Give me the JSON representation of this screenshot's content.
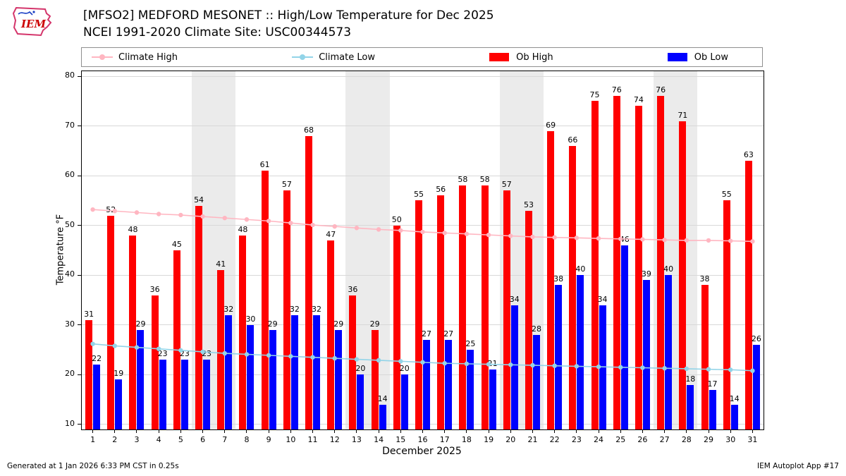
{
  "header": {
    "title_line1": "[MFSO2] MEDFORD MESONET :: High/Low Temperature for Dec 2025",
    "title_line2": "NCEI 1991-2020 Climate Site: USC00344573",
    "logo_text": "IEM"
  },
  "legend": {
    "items": [
      {
        "label": "Climate High",
        "type": "line",
        "color": "#ffb6c1"
      },
      {
        "label": "Climate Low",
        "type": "line",
        "color": "#92d4e8"
      },
      {
        "label": "Ob High",
        "type": "bar",
        "color": "#ff0000"
      },
      {
        "label": "Ob Low",
        "type": "bar",
        "color": "#0000ff"
      }
    ]
  },
  "chart_data": {
    "type": "bar",
    "title": "[MFSO2] MEDFORD MESONET :: High/Low Temperature for Dec 2025",
    "subtitle": "NCEI 1991-2020 Climate Site: USC00344573",
    "xlabel": "December 2025",
    "ylabel": "Temperature °F",
    "ylim": [
      9,
      81
    ],
    "yticks": [
      10,
      20,
      30,
      40,
      50,
      60,
      70,
      80
    ],
    "grid": true,
    "categories": [
      1,
      2,
      3,
      4,
      5,
      6,
      7,
      8,
      9,
      10,
      11,
      12,
      13,
      14,
      15,
      16,
      17,
      18,
      19,
      20,
      21,
      22,
      23,
      24,
      25,
      26,
      27,
      28,
      29,
      30,
      31
    ],
    "weekend_day_bands": [
      [
        6,
        7
      ],
      [
        13,
        14
      ],
      [
        20,
        21
      ],
      [
        27,
        28
      ]
    ],
    "series": [
      {
        "name": "Ob High",
        "type": "bar",
        "color": "#ff0000",
        "labeled": true,
        "values": [
          31,
          52,
          48,
          36,
          45,
          54,
          41,
          48,
          61,
          57,
          68,
          47,
          36,
          29,
          50,
          55,
          56,
          58,
          58,
          57,
          53,
          69,
          66,
          75,
          76,
          74,
          76,
          71,
          38,
          55,
          63
        ]
      },
      {
        "name": "Ob Low",
        "type": "bar",
        "color": "#0000ff",
        "labeled": true,
        "values": [
          22,
          19,
          29,
          23,
          23,
          23,
          32,
          30,
          29,
          32,
          32,
          29,
          20,
          14,
          20,
          27,
          27,
          25,
          21,
          34,
          28,
          38,
          40,
          34,
          46,
          39,
          40,
          18,
          17,
          14,
          26
        ]
      },
      {
        "name": "Climate High",
        "type": "line",
        "color": "#ffb6c1",
        "labeled": false,
        "values": [
          53.2,
          52.9,
          52.6,
          52.3,
          52.1,
          51.8,
          51.5,
          51.2,
          50.9,
          50.5,
          50.1,
          49.8,
          49.5,
          49.2,
          49.0,
          48.7,
          48.5,
          48.3,
          48.1,
          47.9,
          47.7,
          47.6,
          47.5,
          47.4,
          47.3,
          47.2,
          47.1,
          47.0,
          47.0,
          46.9,
          46.8
        ]
      },
      {
        "name": "Climate Low",
        "type": "line",
        "color": "#92d4e8",
        "labeled": false,
        "values": [
          26.2,
          25.8,
          25.5,
          25.2,
          24.9,
          24.6,
          24.3,
          24.1,
          23.9,
          23.7,
          23.5,
          23.3,
          23.1,
          22.9,
          22.7,
          22.5,
          22.3,
          22.2,
          22.1,
          22.0,
          21.9,
          21.8,
          21.7,
          21.6,
          21.5,
          21.4,
          21.3,
          21.2,
          21.1,
          21.0,
          20.8
        ]
      }
    ],
    "band_color": "#ebebeb",
    "grid_color": "#d8d8d8"
  },
  "footer": {
    "generated": "Generated at 1 Jan 2026 6:33 PM CST in 0.25s",
    "app": "IEM Autoplot App #17"
  }
}
